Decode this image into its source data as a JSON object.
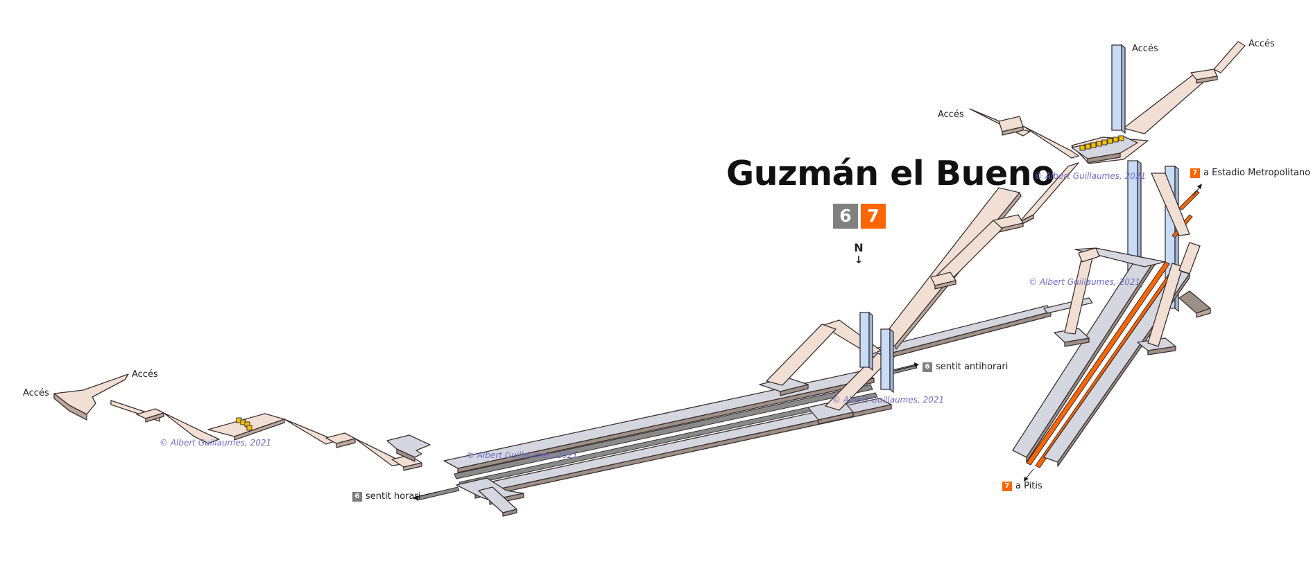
{
  "station": {
    "name": "Guzmán el Bueno",
    "lines": [
      {
        "number": "6",
        "color": "#808080"
      },
      {
        "number": "7",
        "color": "#ff6600"
      }
    ]
  },
  "compass": {
    "letter": "N",
    "arrow": "↓"
  },
  "access_labels": [
    "Accés",
    "Accés",
    "Accés",
    "Accés",
    "Accés"
  ],
  "directions": [
    {
      "line": "6",
      "line_color": "#808080",
      "text": "sentit antihorari"
    },
    {
      "line": "6",
      "line_color": "#808080",
      "text": "sentit horari"
    },
    {
      "line": "7",
      "line_color": "#ff6600",
      "text": "a Estadio Metropolitano"
    },
    {
      "line": "7",
      "line_color": "#ff6600",
      "text": "a Pitis"
    }
  ],
  "credits": [
    "© Albert Guillaumes, 2021",
    "© Albert Guillaumes, 2021",
    "© Albert Guillaumes, 2021",
    "© Albert Guillaumes, 2021",
    "© Albert Guillaumes, 2021"
  ],
  "colors": {
    "corridor_top": "#f2dfd3",
    "corridor_side": "#bca79c",
    "platform_top": "#d5d7e0",
    "platform_side": "#9e8f87",
    "elevator": "#c9dcf6",
    "track_line6": "#808080",
    "track_line7": "#ff6600",
    "turnstile": "#f2c200",
    "stroke": "#3a3030"
  }
}
